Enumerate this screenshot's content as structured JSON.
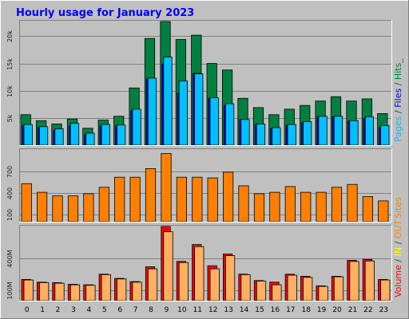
{
  "chart_data": {
    "type": "bar",
    "title": "Hourly usage for January 2023",
    "categories": [
      "0",
      "1",
      "2",
      "3",
      "4",
      "5",
      "6",
      "7",
      "8",
      "9",
      "10",
      "11",
      "12",
      "13",
      "14",
      "15",
      "16",
      "17",
      "18",
      "19",
      "20",
      "21",
      "22",
      "23"
    ],
    "panels": [
      {
        "name": "pages-files-hits",
        "ylabel_parts": [
          {
            "text": "Pages",
            "color": "#00c0ff"
          },
          {
            "text": " / ",
            "color": "#404040"
          },
          {
            "text": "Files",
            "color": "#0000ff"
          },
          {
            "text": " / ",
            "color": "#404040"
          },
          {
            "text": "Hits",
            "color": "#008040"
          },
          {
            "text": "_",
            "color": "#404040"
          }
        ],
        "ylim": [
          0,
          22700
        ],
        "ticks": [
          {
            "value": 5000,
            "label": "5k"
          },
          {
            "value": 10000,
            "label": "10k"
          },
          {
            "value": 15000,
            "label": "15k"
          },
          {
            "value": 20000,
            "label": "20k"
          }
        ],
        "series": [
          {
            "color": "#008040",
            "values": [
              5600,
              4500,
              3900,
              4800,
              3100,
              4600,
              5300,
              10500,
              19600,
              22700,
              19400,
              20200,
              15000,
              13800,
              8600,
              6900,
              5600,
              6600,
              7300,
              8100,
              8900,
              8100,
              8500,
              5800
            ]
          },
          {
            "color": "#0000ff",
            "values": [
              3600,
              3200,
              2700,
              3500,
              1900,
              3500,
              3500,
              6300,
              12100,
              14900,
              9500,
              13200,
              8600,
              7300,
              4700,
              3800,
              3000,
              3600,
              4100,
              5200,
              5200,
              4400,
              4900,
              3300
            ]
          },
          {
            "color": "#00c0ff",
            "values": [
              3800,
              3400,
              3000,
              4000,
              2200,
              3800,
              3700,
              6600,
              12300,
              16200,
              11800,
              13100,
              8700,
              7600,
              4700,
              3900,
              3200,
              3800,
              4300,
              5300,
              5300,
              4500,
              5200,
              3600
            ]
          }
        ]
      },
      {
        "name": "sites",
        "ylabel_parts": [
          {
            "text": "Sites",
            "color": "#ff8000"
          }
        ],
        "ylim": [
          0,
          1000
        ],
        "ticks": [
          {
            "value": 100,
            "label": "100"
          },
          {
            "value": 400,
            "label": "400"
          },
          {
            "value": 700,
            "label": "700"
          }
        ],
        "series": [
          {
            "color": "#ff8000",
            "values": [
              530,
              410,
              360,
              360,
              390,
              480,
              620,
              620,
              740,
              950,
              620,
              620,
              610,
              690,
              500,
              390,
              410,
              490,
              410,
              410,
              480,
              520,
              350,
              290
            ]
          }
        ]
      },
      {
        "name": "volume-in-out",
        "ylabel_parts": [
          {
            "text": "Volume",
            "color": "#ff0000"
          },
          {
            "text": " / ",
            "color": "#404040"
          },
          {
            "text": "IN",
            "color": "#ffff00"
          },
          {
            "text": " / ",
            "color": "#404040"
          },
          {
            "text": "OUT",
            "color": "#ff8000"
          }
        ],
        "ylim": [
          0,
          700
        ],
        "ticks": [
          {
            "value": 100,
            "label": "100M"
          },
          {
            "value": 400,
            "label": "400M"
          }
        ],
        "series": [
          {
            "color": "#ff0000",
            "values": [
              200,
              175,
              170,
              155,
              150,
              250,
              210,
              180,
              320,
              700,
              370,
              530,
              330,
              440,
              250,
              190,
              175,
              250,
              230,
              140,
              230,
              380,
              390,
              200
            ]
          },
          {
            "color": "#ffb060",
            "values": [
              195,
              170,
              165,
              150,
              145,
              245,
              205,
              175,
              300,
              650,
              360,
              510,
              300,
              425,
              245,
              185,
              150,
              240,
              220,
              135,
              225,
              370,
              375,
              195
            ]
          }
        ]
      }
    ]
  }
}
